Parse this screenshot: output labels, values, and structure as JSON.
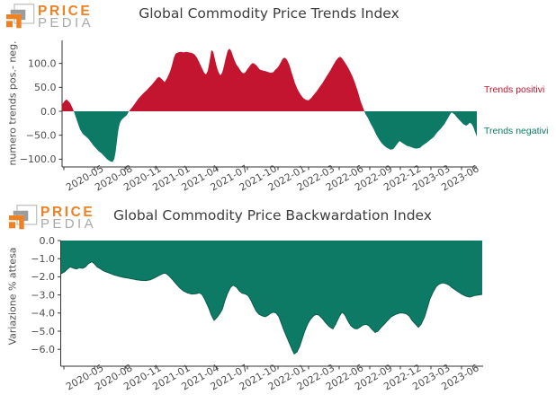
{
  "branding": {
    "wordmark_top": "PRICE",
    "wordmark_bottom": "PEDIA"
  },
  "colors": {
    "positive": "#c3152f",
    "negative": "#0d7a66",
    "negative_edge": "#0a5c49",
    "axis": "#333333",
    "tick_text": "#4d4d4d",
    "title_text": "#3d3d3d",
    "logo_orange": "#ef8122",
    "logo_gray": "#a9a9a9"
  },
  "chart_data": [
    {
      "type": "area",
      "title": "Global Commodity Price Trends Index",
      "ylabel": "numero trends pos.- neg.",
      "x_start": "2020-03",
      "x_end": "2023-06",
      "x_tick_labels": [
        "2020-05",
        "2020-08",
        "2020-11",
        "2021-01",
        "2021-04",
        "2021-07",
        "2021-10",
        "2022-01",
        "2022-03",
        "2022-06",
        "2022-09",
        "2022-12",
        "2023-03",
        "2023-06"
      ],
      "x_tick_pos": [
        0.00434,
        0.07809,
        0.15184,
        0.2256,
        0.29935,
        0.3731,
        0.44685,
        0.5206,
        0.59436,
        0.66811,
        0.74186,
        0.81561,
        0.88937,
        0.96312
      ],
      "y_ticks": [
        100,
        50,
        0,
        -50,
        -100
      ],
      "ylim": [
        -116,
        148
      ],
      "legend": [
        {
          "label": "Trends positivi",
          "color": "#c3152f"
        },
        {
          "label": "Trends negativi",
          "color": "#0d7a66"
        }
      ],
      "points": [
        [
          0.0,
          14
        ],
        [
          0.0065,
          22
        ],
        [
          0.0108,
          25
        ],
        [
          0.0195,
          17
        ],
        [
          0.026,
          5
        ],
        [
          0.0304,
          -5
        ],
        [
          0.0369,
          -22
        ],
        [
          0.0434,
          -38
        ],
        [
          0.0499,
          -47
        ],
        [
          0.0564,
          -52
        ],
        [
          0.0629,
          -57
        ],
        [
          0.0694,
          -64
        ],
        [
          0.0759,
          -72
        ],
        [
          0.0824,
          -78
        ],
        [
          0.0889,
          -84
        ],
        [
          0.0954,
          -88
        ],
        [
          0.1019,
          -94
        ],
        [
          0.1085,
          -100
        ],
        [
          0.115,
          -104
        ],
        [
          0.1215,
          -106
        ],
        [
          0.1258,
          -100
        ],
        [
          0.1291,
          -85
        ],
        [
          0.1323,
          -62
        ],
        [
          0.1356,
          -40
        ],
        [
          0.1388,
          -26
        ],
        [
          0.1432,
          -18
        ],
        [
          0.1497,
          -13
        ],
        [
          0.1562,
          -8
        ],
        [
          0.1605,
          -1
        ],
        [
          0.1649,
          4
        ],
        [
          0.1714,
          11
        ],
        [
          0.1779,
          19
        ],
        [
          0.1844,
          27
        ],
        [
          0.1909,
          33
        ],
        [
          0.1974,
          39
        ],
        [
          0.2039,
          44
        ],
        [
          0.2104,
          50
        ],
        [
          0.2169,
          56
        ],
        [
          0.2234,
          63
        ],
        [
          0.2299,
          70
        ],
        [
          0.2343,
          72
        ],
        [
          0.2408,
          67
        ],
        [
          0.2473,
          61
        ],
        [
          0.2538,
          70
        ],
        [
          0.2603,
          83
        ],
        [
          0.2646,
          95
        ],
        [
          0.269,
          110
        ],
        [
          0.2733,
          120
        ],
        [
          0.2798,
          123
        ],
        [
          0.2863,
          124
        ],
        [
          0.2928,
          123
        ],
        [
          0.2993,
          124
        ],
        [
          0.3059,
          123
        ],
        [
          0.3124,
          122
        ],
        [
          0.3189,
          119
        ],
        [
          0.3254,
          112
        ],
        [
          0.3319,
          100
        ],
        [
          0.3384,
          88
        ],
        [
          0.3427,
          80
        ],
        [
          0.3471,
          77
        ],
        [
          0.3514,
          85
        ],
        [
          0.3557,
          105
        ],
        [
          0.3601,
          128
        ],
        [
          0.3644,
          124
        ],
        [
          0.3688,
          108
        ],
        [
          0.3731,
          92
        ],
        [
          0.3774,
          81
        ],
        [
          0.3818,
          75
        ],
        [
          0.3861,
          81
        ],
        [
          0.3905,
          95
        ],
        [
          0.3948,
          112
        ],
        [
          0.3991,
          126
        ],
        [
          0.4035,
          131
        ],
        [
          0.4078,
          126
        ],
        [
          0.4121,
          115
        ],
        [
          0.4165,
          105
        ],
        [
          0.4208,
          97
        ],
        [
          0.4252,
          92
        ],
        [
          0.4295,
          86
        ],
        [
          0.4338,
          81
        ],
        [
          0.4382,
          79
        ],
        [
          0.4425,
          82
        ],
        [
          0.4469,
          88
        ],
        [
          0.4512,
          93
        ],
        [
          0.4555,
          98
        ],
        [
          0.4599,
          101
        ],
        [
          0.4642,
          99
        ],
        [
          0.4685,
          96
        ],
        [
          0.4729,
          91
        ],
        [
          0.4772,
          87
        ],
        [
          0.4837,
          85
        ],
        [
          0.4902,
          84
        ],
        [
          0.4967,
          82
        ],
        [
          0.5033,
          80
        ],
        [
          0.5098,
          82
        ],
        [
          0.5141,
          87
        ],
        [
          0.5184,
          90
        ],
        [
          0.5228,
          95
        ],
        [
          0.5271,
          102
        ],
        [
          0.5315,
          109
        ],
        [
          0.5358,
          112
        ],
        [
          0.5401,
          110
        ],
        [
          0.5445,
          104
        ],
        [
          0.5488,
          95
        ],
        [
          0.5531,
          82
        ],
        [
          0.5575,
          70
        ],
        [
          0.5618,
          58
        ],
        [
          0.5683,
          45
        ],
        [
          0.5748,
          35
        ],
        [
          0.5813,
          28
        ],
        [
          0.5879,
          24
        ],
        [
          0.5944,
          23
        ],
        [
          0.6009,
          28
        ],
        [
          0.6074,
          35
        ],
        [
          0.6139,
          42
        ],
        [
          0.6204,
          50
        ],
        [
          0.6269,
          58
        ],
        [
          0.6334,
          67
        ],
        [
          0.6399,
          76
        ],
        [
          0.6465,
          85
        ],
        [
          0.653,
          95
        ],
        [
          0.6595,
          105
        ],
        [
          0.666,
          112
        ],
        [
          0.6703,
          114
        ],
        [
          0.6746,
          111
        ],
        [
          0.6811,
          103
        ],
        [
          0.6876,
          94
        ],
        [
          0.6941,
          84
        ],
        [
          0.7007,
          72
        ],
        [
          0.7072,
          57
        ],
        [
          0.7137,
          40
        ],
        [
          0.7202,
          20
        ],
        [
          0.7267,
          5
        ],
        [
          0.731,
          -5
        ],
        [
          0.7375,
          -14
        ],
        [
          0.744,
          -26
        ],
        [
          0.7505,
          -36
        ],
        [
          0.757,
          -48
        ],
        [
          0.7636,
          -58
        ],
        [
          0.7701,
          -66
        ],
        [
          0.7766,
          -72
        ],
        [
          0.7831,
          -76
        ],
        [
          0.7918,
          -80
        ],
        [
          0.7983,
          -79
        ],
        [
          0.8048,
          -72
        ],
        [
          0.8134,
          -62
        ],
        [
          0.8221,
          -67
        ],
        [
          0.8308,
          -72
        ],
        [
          0.8395,
          -74
        ],
        [
          0.8482,
          -77
        ],
        [
          0.8547,
          -78
        ],
        [
          0.8634,
          -76
        ],
        [
          0.8699,
          -71
        ],
        [
          0.8786,
          -66
        ],
        [
          0.8872,
          -60
        ],
        [
          0.8959,
          -54
        ],
        [
          0.9046,
          -44
        ],
        [
          0.9133,
          -36
        ],
        [
          0.9219,
          -27
        ],
        [
          0.9284,
          -17
        ],
        [
          0.9349,
          -7
        ],
        [
          0.9393,
          -2
        ],
        [
          0.9458,
          -6
        ],
        [
          0.9523,
          -13
        ],
        [
          0.961,
          -21
        ],
        [
          0.9675,
          -27
        ],
        [
          0.974,
          -30
        ],
        [
          0.9783,
          -28
        ],
        [
          0.9827,
          -24
        ],
        [
          0.987,
          -26
        ],
        [
          0.9913,
          -32
        ],
        [
          0.9957,
          -43
        ],
        [
          1.0,
          -53
        ]
      ]
    },
    {
      "type": "area",
      "title": "Global Commodity Price Backwardation Index",
      "ylabel": "Variazione % attesa",
      "x_start": "2020-03",
      "x_end": "2023-06",
      "x_tick_labels": [
        "2020-05",
        "2020-08",
        "2020-11",
        "2021-01",
        "2021-04",
        "2021-07",
        "2021-10",
        "2022-01",
        "2022-03",
        "2022-06",
        "2022-09",
        "2022-12",
        "2023-03",
        "2023-06"
      ],
      "x_tick_pos": [
        0.00745,
        0.07987,
        0.15229,
        0.22471,
        0.29712,
        0.36954,
        0.44196,
        0.51438,
        0.5868,
        0.65921,
        0.73163,
        0.80405,
        0.87647,
        0.94888
      ],
      "y_ticks": [
        0,
        -1,
        -2,
        -3,
        -4,
        -5,
        -6
      ],
      "ylim": [
        -6.93,
        0
      ],
      "points": [
        [
          0.001,
          -1.83
        ],
        [
          0.0096,
          -1.72
        ],
        [
          0.016,
          -1.57
        ],
        [
          0.0224,
          -1.45
        ],
        [
          0.0309,
          -1.53
        ],
        [
          0.0373,
          -1.57
        ],
        [
          0.0437,
          -1.5
        ],
        [
          0.0522,
          -1.53
        ],
        [
          0.0586,
          -1.45
        ],
        [
          0.065,
          -1.28
        ],
        [
          0.0735,
          -1.17
        ],
        [
          0.0799,
          -1.28
        ],
        [
          0.0863,
          -1.45
        ],
        [
          0.0948,
          -1.57
        ],
        [
          0.1012,
          -1.67
        ],
        [
          0.1076,
          -1.73
        ],
        [
          0.1161,
          -1.8
        ],
        [
          0.1267,
          -1.9
        ],
        [
          0.1374,
          -1.97
        ],
        [
          0.148,
          -2.03
        ],
        [
          0.1587,
          -2.07
        ],
        [
          0.1693,
          -2.12
        ],
        [
          0.18,
          -2.17
        ],
        [
          0.1906,
          -2.2
        ],
        [
          0.2013,
          -2.21
        ],
        [
          0.2119,
          -2.17
        ],
        [
          0.2226,
          -2.05
        ],
        [
          0.2332,
          -1.92
        ],
        [
          0.2418,
          -1.82
        ],
        [
          0.2481,
          -1.8
        ],
        [
          0.2567,
          -1.95
        ],
        [
          0.2652,
          -2.17
        ],
        [
          0.2737,
          -2.4
        ],
        [
          0.2822,
          -2.62
        ],
        [
          0.2907,
          -2.78
        ],
        [
          0.2993,
          -2.88
        ],
        [
          0.3099,
          -2.95
        ],
        [
          0.3205,
          -2.93
        ],
        [
          0.3291,
          -2.88
        ],
        [
          0.3355,
          -3.0
        ],
        [
          0.3419,
          -3.28
        ],
        [
          0.3504,
          -3.72
        ],
        [
          0.3568,
          -4.12
        ],
        [
          0.3632,
          -4.4
        ],
        [
          0.3696,
          -4.25
        ],
        [
          0.3759,
          -4.05
        ],
        [
          0.3823,
          -3.8
        ],
        [
          0.3887,
          -3.3
        ],
        [
          0.3951,
          -2.9
        ],
        [
          0.4015,
          -2.6
        ],
        [
          0.4079,
          -2.45
        ],
        [
          0.4164,
          -2.58
        ],
        [
          0.4228,
          -2.78
        ],
        [
          0.4292,
          -2.9
        ],
        [
          0.4377,
          -2.95
        ],
        [
          0.4441,
          -3.05
        ],
        [
          0.4505,
          -3.3
        ],
        [
          0.4569,
          -3.62
        ],
        [
          0.4633,
          -3.9
        ],
        [
          0.4696,
          -4.07
        ],
        [
          0.4782,
          -4.17
        ],
        [
          0.4845,
          -4.2
        ],
        [
          0.4909,
          -4.12
        ],
        [
          0.4973,
          -4.0
        ],
        [
          0.5037,
          -3.95
        ],
        [
          0.5101,
          -4.0
        ],
        [
          0.5165,
          -4.2
        ],
        [
          0.5229,
          -4.6
        ],
        [
          0.5293,
          -5.0
        ],
        [
          0.5357,
          -5.35
        ],
        [
          0.5421,
          -5.7
        ],
        [
          0.5484,
          -6.05
        ],
        [
          0.5527,
          -6.25
        ],
        [
          0.5591,
          -6.15
        ],
        [
          0.5655,
          -5.85
        ],
        [
          0.5719,
          -5.4
        ],
        [
          0.5783,
          -4.95
        ],
        [
          0.5846,
          -4.6
        ],
        [
          0.591,
          -4.35
        ],
        [
          0.5974,
          -4.18
        ],
        [
          0.6038,
          -4.07
        ],
        [
          0.6102,
          -4.1
        ],
        [
          0.6187,
          -4.28
        ],
        [
          0.6273,
          -4.53
        ],
        [
          0.6358,
          -4.75
        ],
        [
          0.6443,
          -4.87
        ],
        [
          0.6507,
          -4.62
        ],
        [
          0.6592,
          -4.2
        ],
        [
          0.6656,
          -3.95
        ],
        [
          0.672,
          -4.07
        ],
        [
          0.6805,
          -4.45
        ],
        [
          0.6869,
          -4.7
        ],
        [
          0.6954,
          -4.85
        ],
        [
          0.7018,
          -4.87
        ],
        [
          0.7082,
          -4.78
        ],
        [
          0.7146,
          -4.67
        ],
        [
          0.7231,
          -4.62
        ],
        [
          0.7295,
          -4.7
        ],
        [
          0.7359,
          -4.87
        ],
        [
          0.7444,
          -5.07
        ],
        [
          0.7508,
          -5.0
        ],
        [
          0.7572,
          -4.82
        ],
        [
          0.7657,
          -4.62
        ],
        [
          0.7721,
          -4.45
        ],
        [
          0.7827,
          -4.2
        ],
        [
          0.7934,
          -4.07
        ],
        [
          0.8019,
          -4.0
        ],
        [
          0.8104,
          -4.0
        ],
        [
          0.8189,
          -4.05
        ],
        [
          0.8253,
          -4.17
        ],
        [
          0.8317,
          -4.4
        ],
        [
          0.8403,
          -4.62
        ],
        [
          0.8466,
          -4.78
        ],
        [
          0.853,
          -4.62
        ],
        [
          0.8616,
          -4.2
        ],
        [
          0.8679,
          -3.7
        ],
        [
          0.8743,
          -3.2
        ],
        [
          0.8829,
          -2.78
        ],
        [
          0.8892,
          -2.53
        ],
        [
          0.8956,
          -2.4
        ],
        [
          0.902,
          -2.35
        ],
        [
          0.9063,
          -2.33
        ],
        [
          0.9127,
          -2.38
        ],
        [
          0.919,
          -2.45
        ],
        [
          0.9276,
          -2.62
        ],
        [
          0.9382,
          -2.78
        ],
        [
          0.9489,
          -2.95
        ],
        [
          0.9595,
          -3.07
        ],
        [
          0.968,
          -3.12
        ],
        [
          0.9744,
          -3.08
        ],
        [
          0.9808,
          -3.03
        ],
        [
          0.9893,
          -3.0
        ],
        [
          0.9979,
          -2.97
        ]
      ]
    }
  ]
}
